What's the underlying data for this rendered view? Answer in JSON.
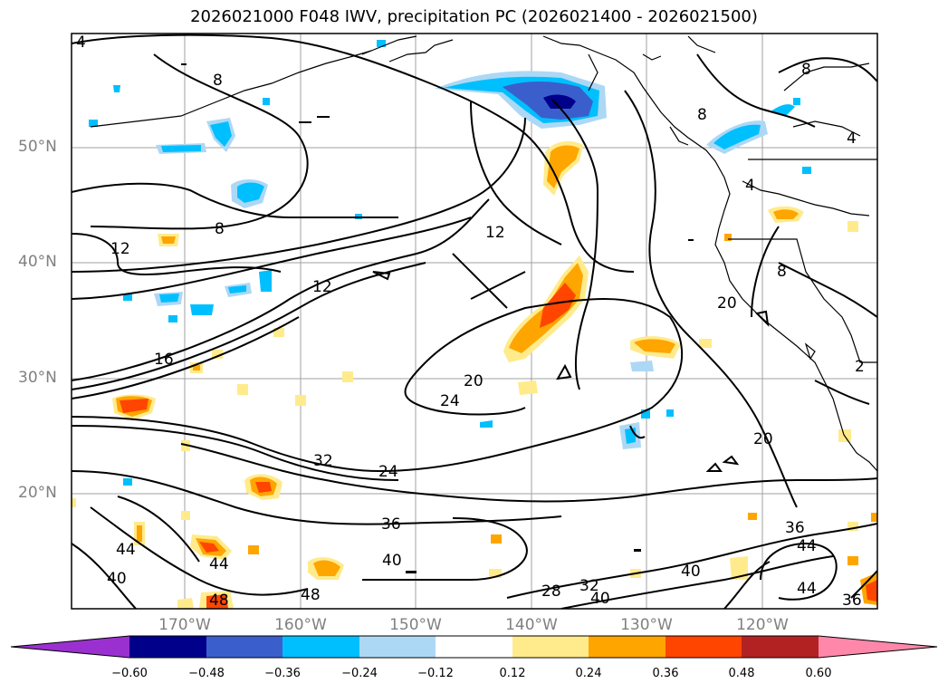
{
  "title": "2026021000 F048 IWV, precipitation PC (2026021400 - 2026021500)",
  "lat_labels": [
    "50°N",
    "40°N",
    "30°N",
    "20°N"
  ],
  "lon_labels": [
    "170°W",
    "160°W",
    "150°W",
    "140°W",
    "130°W",
    "120°W"
  ],
  "contour_labels": [
    "4",
    "8",
    "8",
    "8",
    "8",
    "4",
    "8",
    "12",
    "12",
    "12",
    "16",
    "20",
    "24",
    "20",
    "20",
    "24",
    "32",
    "36",
    "40",
    "40",
    "36",
    "44",
    "40",
    "44",
    "48",
    "48",
    "28",
    "32",
    "40",
    "36",
    "44",
    "2",
    "4",
    "44"
  ],
  "colorbar": {
    "ticks": [
      "−0.60",
      "−0.48",
      "−0.36",
      "−0.24",
      "−0.12",
      "0.12",
      "0.24",
      "0.36",
      "0.48",
      "0.60"
    ],
    "colors": [
      "#9b30d0",
      "#00008b",
      "#3a5fcd",
      "#00bfff",
      "#add8f5",
      "#ffffff",
      "#ffeb8c",
      "#ffa500",
      "#ff4500",
      "#b22222",
      "#ff88aa"
    ]
  },
  "field_colors": {
    "blue_light": "#add8f5",
    "blue": "#00bfff",
    "blue_dark": "#3a5fcd",
    "navy": "#00008b",
    "yellow": "#ffeb8c",
    "orange": "#ffa500",
    "red": "#ff4500",
    "darkred": "#b22222"
  }
}
